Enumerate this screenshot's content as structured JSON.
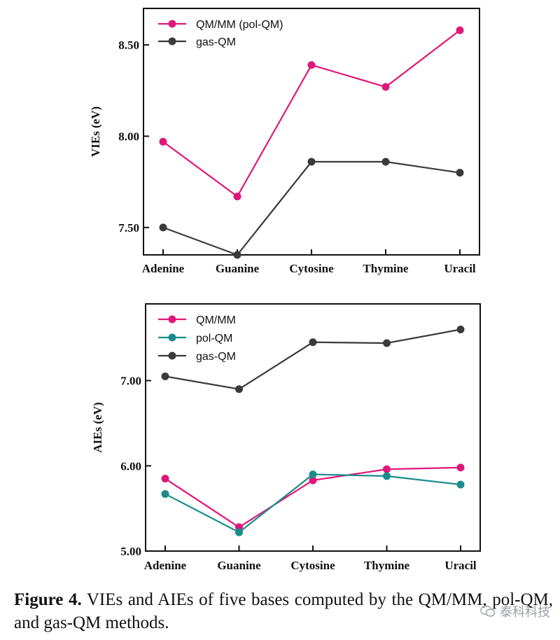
{
  "chart_data": [
    {
      "type": "line",
      "categories": [
        "Adenine",
        "Guanine",
        "Cytosine",
        "Thymine",
        "Uracil"
      ],
      "ylabel": "VIEs (eV)",
      "ylim": [
        7.35,
        8.7
      ],
      "yticks": [
        "7.50",
        "8.00",
        "8.50"
      ],
      "legend": "top-left",
      "series": [
        {
          "name": "QM/MM (pol-QM)",
          "color": "#e0177a",
          "values": [
            7.97,
            7.67,
            8.39,
            8.27,
            8.58
          ]
        },
        {
          "name": "gas-QM",
          "color": "#3a3a3a",
          "values": [
            7.5,
            7.35,
            7.86,
            7.86,
            7.8
          ]
        }
      ]
    },
    {
      "type": "line",
      "categories": [
        "Adenine",
        "Guanine",
        "Cytosine",
        "Thymine",
        "Uracil"
      ],
      "ylabel": "AIEs (eV)",
      "ylim": [
        5.0,
        7.9
      ],
      "yticks": [
        "5.00",
        "6.00",
        "7.00"
      ],
      "legend": "top-left",
      "series": [
        {
          "name": "QM/MM",
          "color": "#e0177a",
          "values": [
            5.85,
            5.28,
            5.83,
            5.96,
            5.98
          ]
        },
        {
          "name": "pol-QM",
          "color": "#1a8c8c",
          "values": [
            5.67,
            5.22,
            5.9,
            5.88,
            5.78
          ]
        },
        {
          "name": "gas-QM",
          "color": "#3a3a3a",
          "values": [
            7.05,
            6.9,
            7.45,
            7.44,
            7.6
          ]
        }
      ]
    }
  ],
  "caption": {
    "label": "Figure 4.",
    "text": " VIEs and AIEs of five bases computed by the QM/MM, pol-QM, and gas-QM methods."
  },
  "watermark": "泰科科技"
}
